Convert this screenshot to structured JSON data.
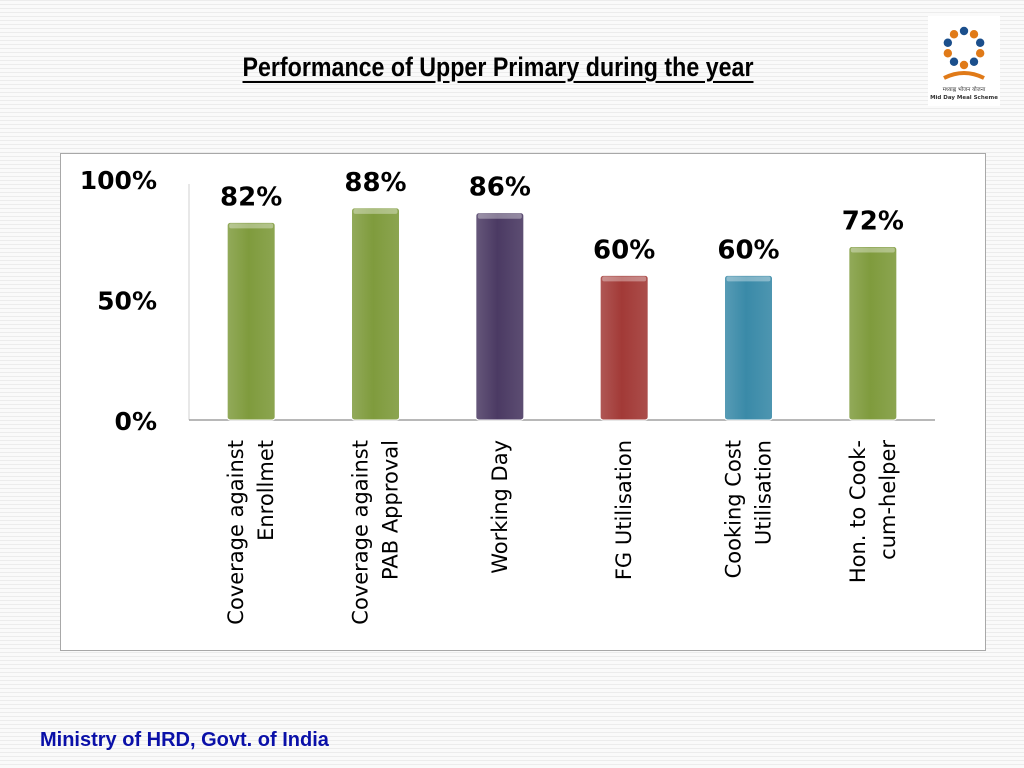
{
  "header": {
    "title": "Performance of Upper Primary during the year",
    "logo_text": "मध्याह्न भोजन योजना",
    "logo_caption": "Mid Day Meal Scheme"
  },
  "footer": {
    "text": "Ministry of HRD, Govt. of India"
  },
  "chart_data": {
    "type": "bar",
    "title": "Performance of Upper Primary during the year",
    "xlabel": "",
    "ylabel": "",
    "ylim": [
      0,
      100
    ],
    "yticks": [
      "0%",
      "50%",
      "100%"
    ],
    "grid": false,
    "legend": "none",
    "categories": [
      [
        "Coverage against",
        "Enrollmet"
      ],
      [
        "Coverage against",
        "PAB Approval"
      ],
      [
        "Working Day"
      ],
      [
        "FG Utilisation"
      ],
      [
        "Cooking Cost",
        "Utilisation"
      ],
      [
        "Hon. to Cook-",
        "cum-helper"
      ]
    ],
    "values": [
      82,
      88,
      86,
      60,
      60,
      72
    ],
    "data_labels": [
      "82%",
      "88%",
      "86%",
      "60%",
      "60%",
      "72%"
    ],
    "colors": [
      "#7f9b3d",
      "#7f9b3d",
      "#4b3a63",
      "#a23a37",
      "#3a8aa8",
      "#7f9b3d"
    ]
  }
}
